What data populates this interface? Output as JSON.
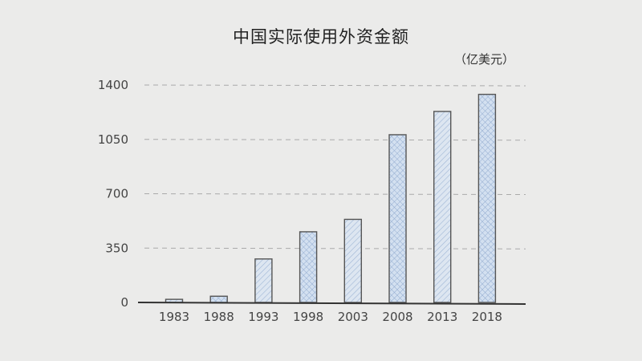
{
  "chart_data": {
    "type": "bar",
    "title": "中国实际使用外资金额",
    "unit": "（亿美元）",
    "categories": [
      "1983",
      "1988",
      "1993",
      "1998",
      "2003",
      "2008",
      "2013",
      "2018"
    ],
    "values": [
      20,
      40,
      280,
      455,
      535,
      1080,
      1230,
      1340
    ],
    "ylim": [
      0,
      1400
    ],
    "yticks": [
      0,
      350,
      700,
      1050,
      1400
    ],
    "grid": true,
    "colors": {
      "bar_fill": "#dce6f2",
      "bar_hatch": "#9fb6d6",
      "bar_stroke": "#555555",
      "grid": "#aaaaaa"
    }
  }
}
